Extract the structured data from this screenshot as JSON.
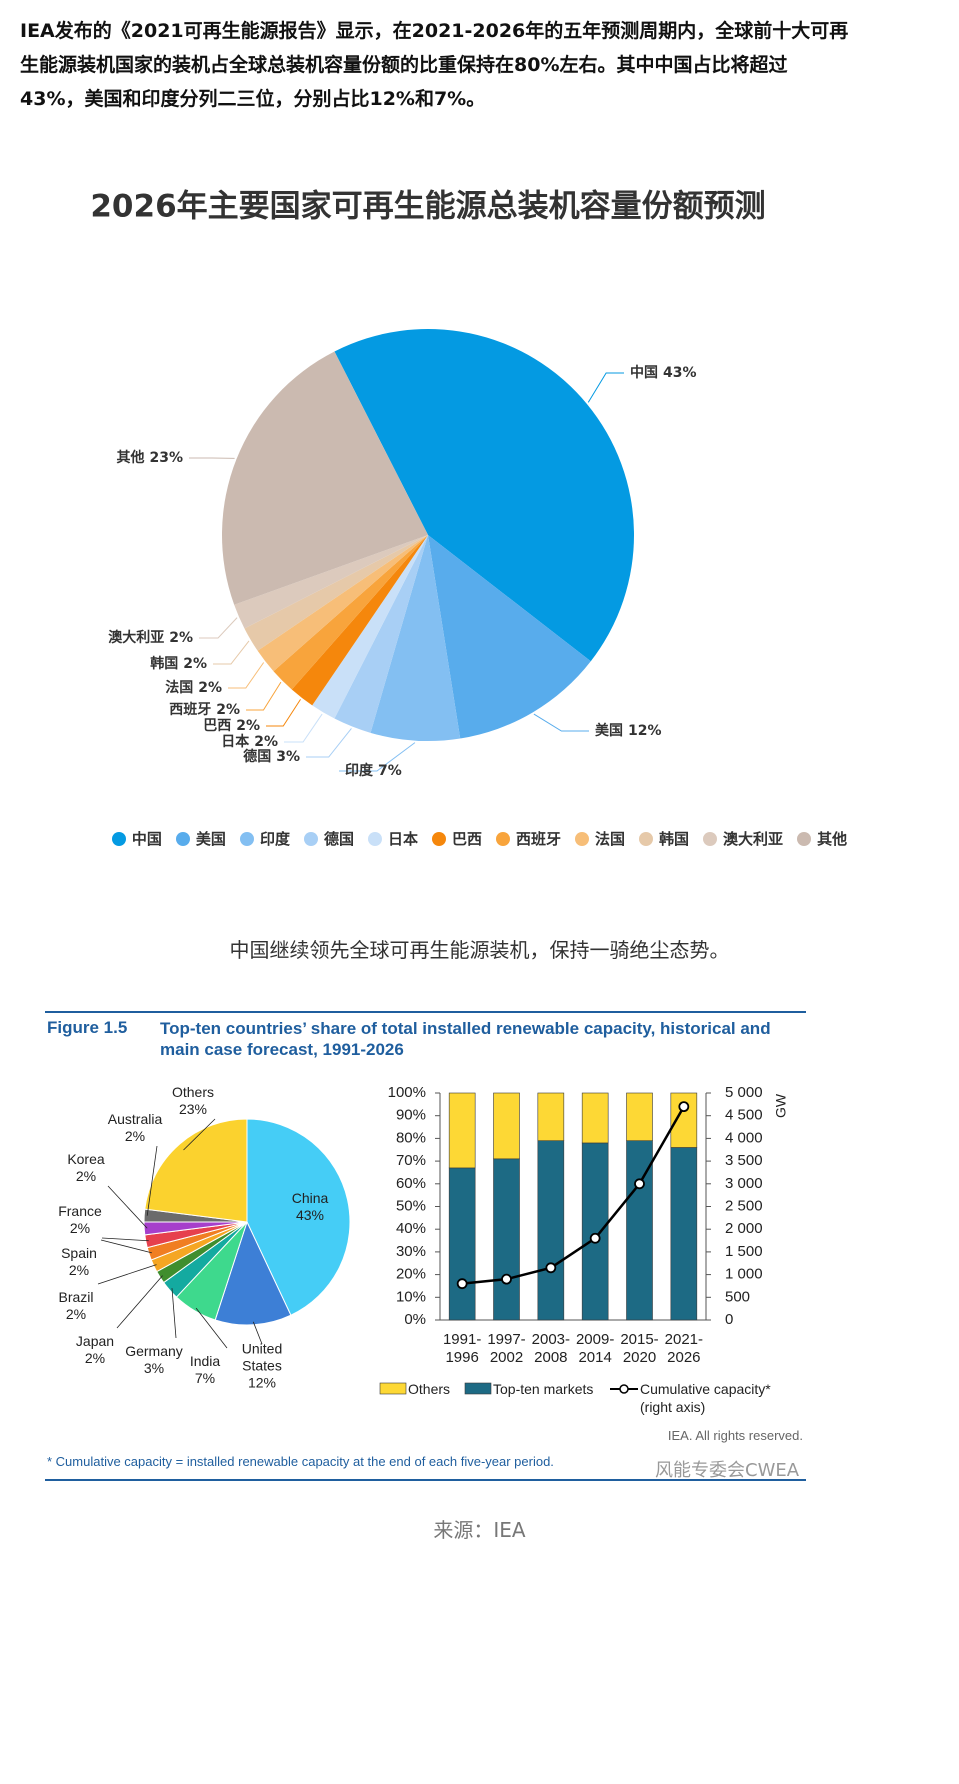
{
  "paragraph": "IEA发布的《2021可再生能源报告》显示，在2021-2026年的五年预测周期内，全球前十大可再生能源装机国家的装机占全球总装机容量份额的比重保持在80%左右。其中中国占比将超过43%，美国和印度分列二三位，分别占比12%和7%。",
  "chart_data": [
    {
      "type": "pie",
      "title": "2026年主要国家可再生能源总装机容量份额预测",
      "categories": [
        "中国",
        "美国",
        "印度",
        "德国",
        "日本",
        "巴西",
        "西班牙",
        "法国",
        "韩国",
        "澳大利亚",
        "其他"
      ],
      "values": [
        43,
        12,
        7,
        3,
        2,
        2,
        2,
        2,
        2,
        2,
        23
      ],
      "value_labels": [
        "43%",
        "12%",
        "7%",
        "3%",
        "2%",
        "2%",
        "2%",
        "2%",
        "2%",
        "2%",
        "23%"
      ],
      "colors": [
        "#049ae2",
        "#58acec",
        "#83bff2",
        "#a8cff5",
        "#c9e0f8",
        "#f5870c",
        "#f8a43c",
        "#f7be78",
        "#e6c9a9",
        "#dccabd",
        "#cbbab0"
      ],
      "legend": "bottom"
    },
    {
      "type": "pie",
      "categories": [
        "China",
        "United States",
        "India",
        "Germany",
        "Japan",
        "Brazil",
        "Spain",
        "France",
        "Korea",
        "Australia",
        "Others"
      ],
      "values": [
        43,
        12,
        7,
        3,
        2,
        2,
        2,
        2,
        2,
        2,
        23
      ],
      "value_labels": [
        "43%",
        "12%",
        "7%",
        "3%",
        "2%",
        "2%",
        "2%",
        "2%",
        "2%",
        "2%",
        "23%"
      ],
      "colors": [
        "#45cdf6",
        "#3d7fd6",
        "#3ed98d",
        "#14aaa0",
        "#3f8e2e",
        "#f5a623",
        "#f07e22",
        "#e6404d",
        "#a63fcb",
        "#6b6b6b",
        "#fbd22e"
      ]
    },
    {
      "type": "bar",
      "stacked": true,
      "categories": [
        "1991-1996",
        "1997-2002",
        "2003-2008",
        "2009-2014",
        "2015-2020",
        "2021-2026"
      ],
      "series": [
        {
          "name": "Others",
          "color": "#fdd835",
          "values": [
            33,
            29,
            21,
            22,
            21,
            24
          ]
        },
        {
          "name": "Top-ten markets",
          "color": "#1d6a84",
          "values": [
            67,
            71,
            79,
            78,
            79,
            76
          ]
        },
        {
          "name": "Cumulative capacity* (right axis)",
          "color": "#000000",
          "type": "line",
          "axis": "y2",
          "values": [
            800,
            900,
            1150,
            1800,
            3000,
            4700
          ]
        }
      ],
      "ylim": [
        0,
        100
      ],
      "yticks": [
        {
          "value": 0,
          "label": "0%"
        },
        {
          "value": 10,
          "label": "10%"
        },
        {
          "value": 20,
          "label": "20%"
        },
        {
          "value": 30,
          "label": "30%"
        },
        {
          "value": 40,
          "label": "40%"
        },
        {
          "value": 50,
          "label": "50%"
        },
        {
          "value": 60,
          "label": "60%"
        },
        {
          "value": 70,
          "label": "70%"
        },
        {
          "value": 80,
          "label": "80%"
        },
        {
          "value": 90,
          "label": "90%"
        },
        {
          "value": 100,
          "label": "100%"
        }
      ],
      "y2lim": [
        0,
        5000
      ],
      "y2ticks": [
        0,
        500,
        {
          "value": 1000,
          "label": "1 000"
        },
        {
          "value": 1500,
          "label": "1 500"
        },
        {
          "value": 2000,
          "label": "2 000"
        },
        {
          "value": 2500,
          "label": "2 500"
        },
        {
          "value": 3000,
          "label": "3 000"
        },
        {
          "value": 3500,
          "label": "3 500"
        },
        {
          "value": 4000,
          "label": "4 000"
        },
        {
          "value": 4500,
          "label": "4 500"
        },
        {
          "value": 5000,
          "label": "5 000"
        }
      ],
      "y2label": "GW"
    }
  ],
  "caption": "中国继续领先全球可再生能源装机，保持一骑绝尘态势。",
  "figure": {
    "label": "Figure 1.5",
    "title": "Top-ten countries’ share of total installed renewable capacity, historical and main case forecast, 1991-2026",
    "copyright": "IEA. All rights reserved.",
    "footnote": "* Cumulative capacity = installed renewable capacity at the end of each five-year period."
  },
  "watermark": "风能专委会CWEA",
  "source": "来源：IEA"
}
